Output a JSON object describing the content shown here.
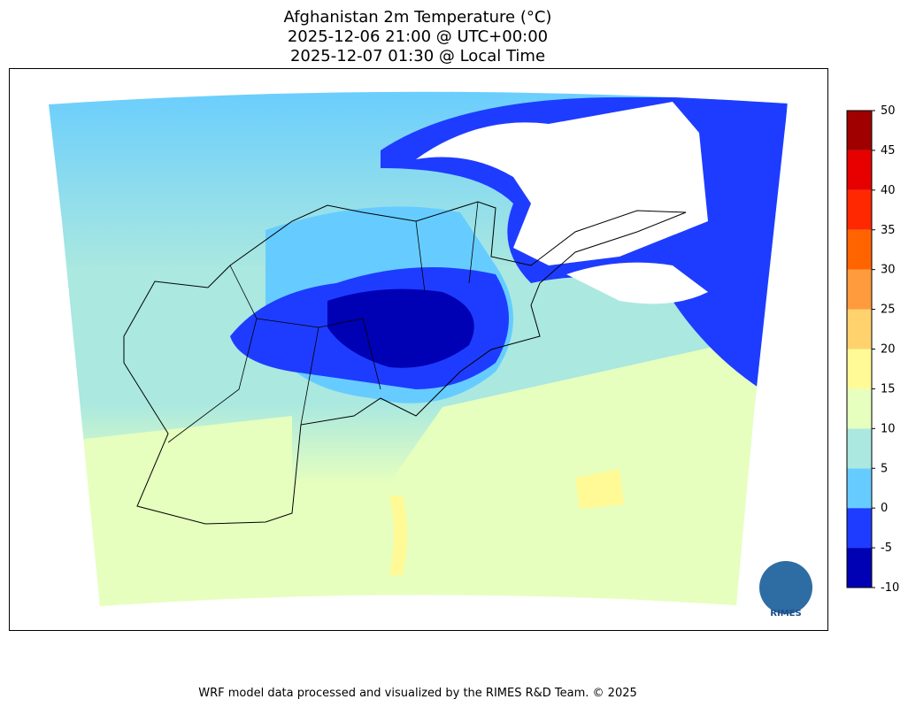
{
  "header": {
    "title_lines": [
      "Afghanistan 2m Temperature (°C)",
      "2025-12-06 21:00 @ UTC+00:00",
      "2025-12-07 01:30 @ Local Time"
    ]
  },
  "colorbar": {
    "ticks": [
      -10,
      -5,
      0,
      5,
      10,
      15,
      20,
      25,
      30,
      35,
      40,
      45,
      50
    ],
    "colors": [
      "#0000b4",
      "#1e3cff",
      "#66ccff",
      "#aae8e0",
      "#e6ffbe",
      "#fffa96",
      "#ffd26e",
      "#ff9b3c",
      "#ff6400",
      "#ff2800",
      "#e60000",
      "#a00000"
    ]
  },
  "logo": {
    "label": "RIMES"
  },
  "footer": {
    "text": "WRF model data processed and visualized by the RIMES R&D Team. © 2025"
  }
}
